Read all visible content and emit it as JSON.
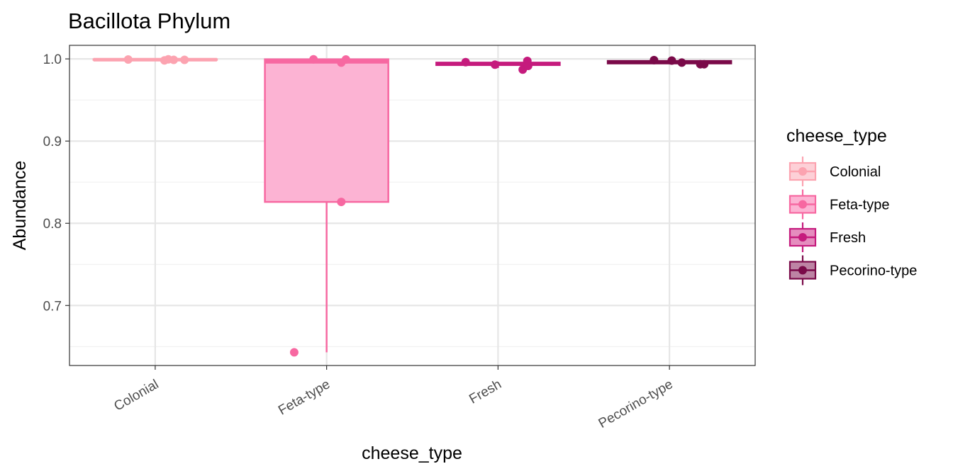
{
  "chart_data": {
    "type": "boxplot",
    "title": "Bacillota Phylum",
    "xlabel": "cheese_type",
    "ylabel": "Abundance",
    "ylim": [
      0.627,
      1.0165
    ],
    "y_ticks": [
      0.7,
      0.8,
      0.9,
      1.0
    ],
    "y_tick_labels": [
      "0.7",
      "0.8",
      "0.9",
      "1.0"
    ],
    "y_minor_ticks": [
      0.65,
      0.75,
      0.85,
      0.95
    ],
    "grid": true,
    "legend": {
      "title": "cheese_type",
      "position": "right"
    },
    "categories": [
      "Colonial",
      "Feta-type",
      "Fresh",
      "Pecorino-type"
    ],
    "series": [
      {
        "name": "Colonial",
        "color": "#FCA3B0",
        "fill": "#FDD0D7",
        "box": {
          "min": 0.9985,
          "q1": 0.9988,
          "median": 0.999,
          "q3": 0.9995,
          "max": 0.9998
        },
        "points": [
          {
            "x": -0.35,
            "y": 0.9993
          },
          {
            "x": 0.12,
            "y": 0.9982
          },
          {
            "x": 0.17,
            "y": 0.9995
          },
          {
            "x": 0.24,
            "y": 0.9988
          },
          {
            "x": 0.38,
            "y": 0.9988
          }
        ]
      },
      {
        "name": "Feta-type",
        "color": "#F768A1",
        "fill": "#FCB3D3",
        "box": {
          "min": 0.643,
          "q1": 0.826,
          "median": 0.9965,
          "q3": 0.9995,
          "max": 0.9998
        },
        "points": [
          {
            "x": -0.42,
            "y": 0.643
          },
          {
            "x": -0.17,
            "y": 0.9995
          },
          {
            "x": 0.19,
            "y": 0.826
          },
          {
            "x": 0.19,
            "y": 0.9955
          },
          {
            "x": 0.25,
            "y": 0.9993
          }
        ]
      },
      {
        "name": "Fresh",
        "color": "#C51B7D",
        "fill": "#E58DBE",
        "box": {
          "min": 0.989,
          "q1": 0.9925,
          "median": 0.994,
          "q3": 0.9955,
          "max": 0.997
        },
        "points": [
          {
            "x": -0.42,
            "y": 0.996
          },
          {
            "x": -0.04,
            "y": 0.993
          },
          {
            "x": 0.32,
            "y": 0.987
          },
          {
            "x": 0.38,
            "y": 0.9975
          },
          {
            "x": 0.39,
            "y": 0.9915
          }
        ]
      },
      {
        "name": "Pecorino-type",
        "color": "#7A0A49",
        "fill": "#BD84A4",
        "box": {
          "min": 0.9935,
          "q1": 0.9945,
          "median": 0.996,
          "q3": 0.9975,
          "max": 0.9985
        },
        "points": [
          {
            "x": -0.2,
            "y": 0.9985
          },
          {
            "x": 0.03,
            "y": 0.998
          },
          {
            "x": 0.16,
            "y": 0.9955
          },
          {
            "x": 0.4,
            "y": 0.9935
          },
          {
            "x": 0.45,
            "y": 0.9935
          }
        ]
      }
    ]
  }
}
